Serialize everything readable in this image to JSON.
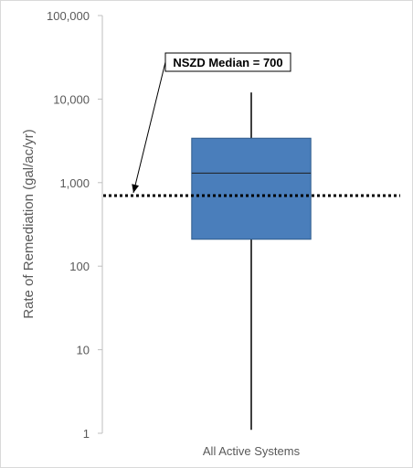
{
  "chart_data": {
    "type": "box",
    "ylabel": "Rate of Remediation (gal/ac/yr)",
    "y_scale": "log",
    "ylim": [
      1,
      100000
    ],
    "y_ticks": [
      {
        "value": 1,
        "label": "1"
      },
      {
        "value": 10,
        "label": "10"
      },
      {
        "value": 100,
        "label": "100"
      },
      {
        "value": 1000,
        "label": "1,000"
      },
      {
        "value": 10000,
        "label": "10,000"
      },
      {
        "value": 100000,
        "label": "100,000"
      }
    ],
    "categories": [
      "All Active Systems"
    ],
    "boxes": [
      {
        "category": "All Active Systems",
        "min": 1.1,
        "q1": 210,
        "median": 1300,
        "q3": 3400,
        "max": 12000
      }
    ],
    "reference_line": {
      "value": 700,
      "style": "dotted"
    },
    "annotation": {
      "text": "NSZD Median = 700",
      "points_to_value": 700
    },
    "colors": {
      "box_fill": "#4a7ebb",
      "box_edge": "#2e5b8c",
      "whisker": "#000000",
      "reference_line": "#000000",
      "gridless": true
    },
    "grid": false
  }
}
